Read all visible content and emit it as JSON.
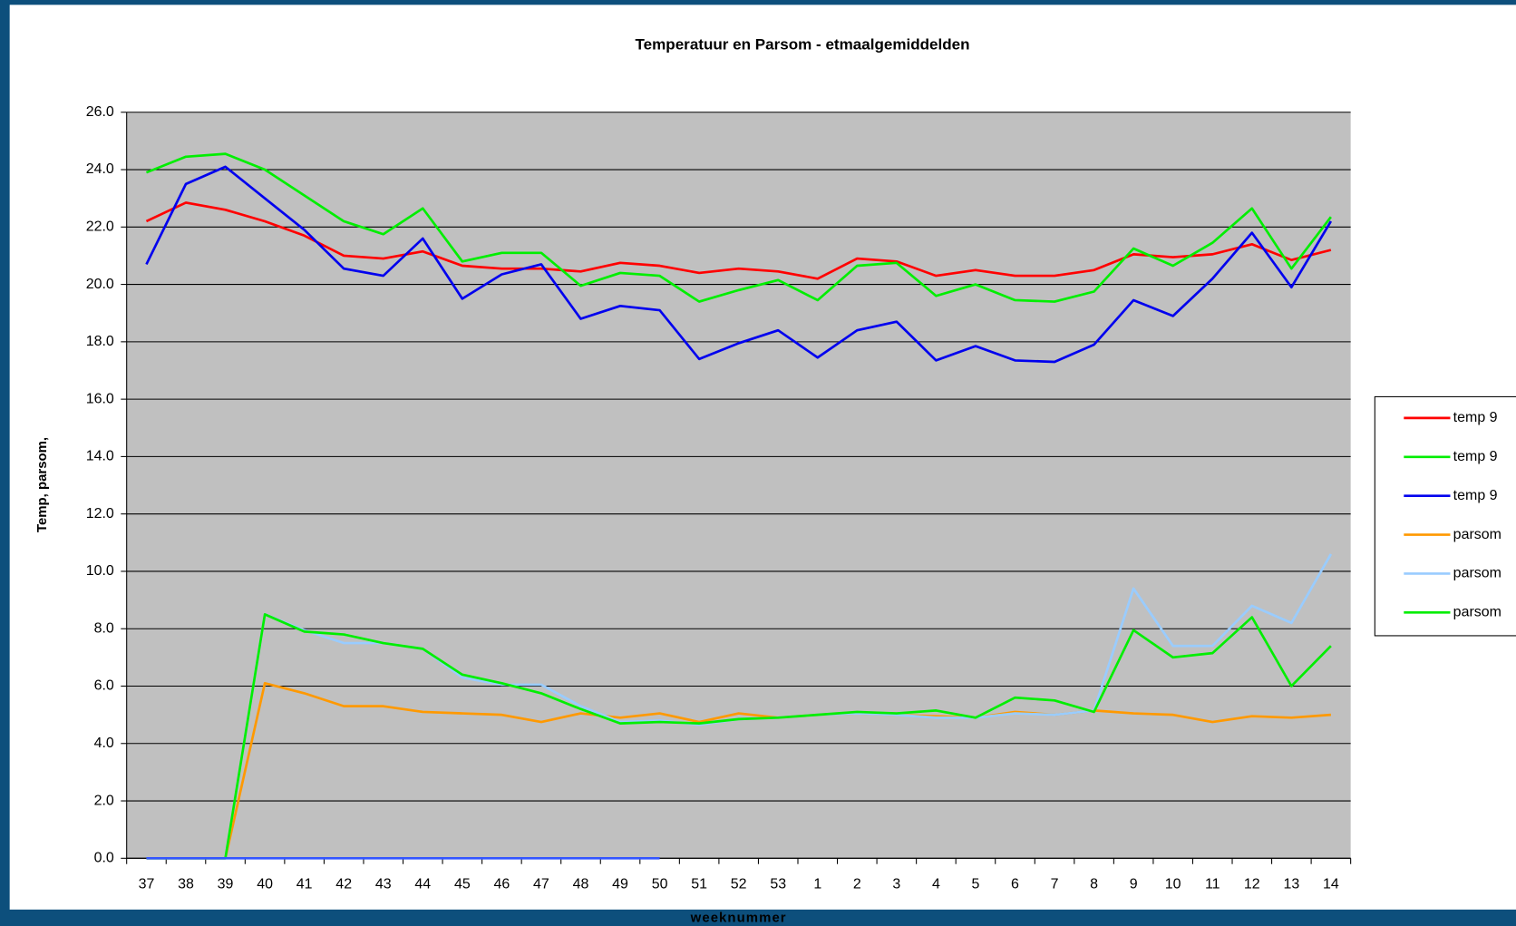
{
  "chart_data": {
    "type": "line",
    "title": "Temperatuur en Parsom - etmaalgemiddelden",
    "x_label": "weeknummer",
    "y_label": "Temp, parsom,",
    "categories": [
      "37",
      "38",
      "39",
      "40",
      "41",
      "42",
      "43",
      "44",
      "45",
      "46",
      "47",
      "48",
      "49",
      "50",
      "51",
      "52",
      "53",
      "1",
      "2",
      "3",
      "4",
      "5",
      "6",
      "7",
      "8",
      "9",
      "10",
      "11",
      "12",
      "13",
      "14"
    ],
    "ylim": [
      0,
      26
    ],
    "yticks": [
      {
        "value": 0,
        "label": "0.0"
      },
      {
        "value": 2,
        "label": "2.0"
      },
      {
        "value": 4,
        "label": "4.0"
      },
      {
        "value": 6,
        "label": "6.0"
      },
      {
        "value": 8,
        "label": "8.0"
      },
      {
        "value": 10,
        "label": "10.0"
      },
      {
        "value": 12,
        "label": "12.0"
      },
      {
        "value": 14,
        "label": "14.0"
      },
      {
        "value": 16,
        "label": "16.0"
      },
      {
        "value": 18,
        "label": "18.0"
      },
      {
        "value": 20,
        "label": "20.0"
      },
      {
        "value": 22,
        "label": "22.0"
      },
      {
        "value": 24,
        "label": "24.0"
      },
      {
        "value": 26,
        "label": "26.0"
      }
    ],
    "grid": true,
    "legend": "right",
    "series": [
      {
        "name": "temp 9",
        "color": "#ff0000",
        "values": [
          22.2,
          22.85,
          22.6,
          22.2,
          21.7,
          21.0,
          20.9,
          21.15,
          20.65,
          20.55,
          20.55,
          20.45,
          20.75,
          20.65,
          20.4,
          20.55,
          20.45,
          20.2,
          20.9,
          20.8,
          20.3,
          20.5,
          20.3,
          20.3,
          20.5,
          21.05,
          20.95,
          21.05,
          21.4,
          20.85,
          21.2
        ]
      },
      {
        "name": "temp 9",
        "color": "#00ee00",
        "values": [
          23.9,
          24.45,
          24.55,
          24.0,
          23.1,
          22.2,
          21.75,
          22.65,
          20.8,
          21.1,
          21.1,
          19.95,
          20.4,
          20.3,
          19.4,
          19.8,
          20.15,
          19.45,
          20.65,
          20.75,
          19.6,
          20.0,
          19.45,
          19.4,
          19.75,
          21.25,
          20.65,
          21.45,
          22.65,
          20.55,
          22.35
        ]
      },
      {
        "name": "temp 9",
        "color": "#0000ee",
        "values": [
          20.7,
          23.5,
          24.1,
          23.0,
          21.9,
          20.55,
          20.3,
          21.6,
          19.5,
          20.35,
          20.7,
          18.8,
          19.25,
          19.1,
          17.4,
          17.95,
          18.4,
          17.45,
          18.4,
          18.7,
          17.35,
          17.85,
          17.35,
          17.3,
          17.9,
          19.45,
          18.9,
          20.2,
          21.8,
          19.9,
          22.2
        ]
      },
      {
        "name": "parsom",
        "color": "#ff9900",
        "values": [
          0,
          0,
          0,
          6.1,
          5.75,
          5.3,
          5.3,
          5.1,
          5.05,
          5.0,
          4.75,
          5.05,
          4.9,
          5.05,
          4.75,
          5.05,
          4.9,
          5.0,
          5.05,
          5.0,
          4.95,
          4.9,
          5.1,
          5.0,
          5.15,
          5.05,
          5.0,
          4.75,
          4.95,
          4.9,
          5.0
        ]
      },
      {
        "name": "parsom",
        "color": "#99ccff",
        "values": [
          0,
          0,
          0,
          8.5,
          7.95,
          7.5,
          7.5,
          7.3,
          6.3,
          6.05,
          6.05,
          5.3,
          4.75,
          4.8,
          4.65,
          4.85,
          4.9,
          5.0,
          5.05,
          5.0,
          4.9,
          4.9,
          5.05,
          5.0,
          5.15,
          9.4,
          7.4,
          7.4,
          8.8,
          8.2,
          10.6
        ]
      },
      {
        "name": "parsom",
        "color": "#00ee00",
        "values": [
          0,
          0,
          0,
          8.5,
          7.9,
          7.8,
          7.5,
          7.3,
          6.4,
          6.1,
          5.75,
          5.2,
          4.7,
          4.75,
          4.7,
          4.85,
          4.9,
          5.0,
          5.1,
          5.05,
          5.15,
          4.9,
          5.6,
          5.5,
          5.1,
          7.95,
          7.0,
          7.15,
          8.4,
          6.0,
          7.4
        ]
      },
      {
        "color": "#3355ff",
        "values": [
          0,
          0,
          0,
          0,
          0,
          0,
          0,
          0,
          0,
          0,
          0,
          0,
          0,
          0,
          null,
          null,
          null,
          null,
          null,
          null,
          null,
          null,
          null,
          null,
          null,
          null,
          null,
          null,
          null,
          null,
          null
        ]
      }
    ]
  }
}
